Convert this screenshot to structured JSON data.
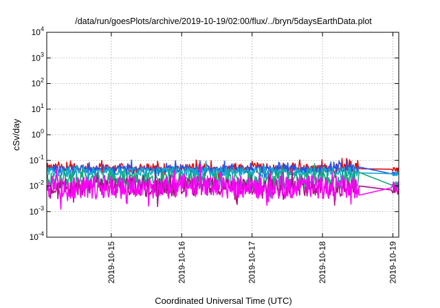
{
  "chart_data": {
    "type": "line",
    "title": "/data/run/goesPlots/archive/2019-10-19/02:00/flux/../bryn/5daysEarthData.plot",
    "xlabel": "Coordinated Universal Time (UTC)",
    "ylabel": "cSv/day",
    "yscale": "log",
    "ylim": [
      0.0001,
      10000
    ],
    "xlim": [
      "2019-10-14 02:00",
      "2019-10-19 02:00"
    ],
    "grid": true,
    "legend": "none",
    "y_ticks": [
      {
        "base": "10",
        "exp": "-4",
        "value": 0.0001
      },
      {
        "base": "10",
        "exp": "-3",
        "value": 0.001
      },
      {
        "base": "10",
        "exp": "-2",
        "value": 0.01
      },
      {
        "base": "10",
        "exp": "-1",
        "value": 0.1
      },
      {
        "base": "10",
        "exp": "0",
        "value": 1
      },
      {
        "base": "10",
        "exp": "1",
        "value": 10
      },
      {
        "base": "10",
        "exp": "2",
        "value": 100
      },
      {
        "base": "10",
        "exp": "3",
        "value": 1000
      },
      {
        "base": "10",
        "exp": "4",
        "value": 10000
      }
    ],
    "x_ticks": [
      "2019-10-15",
      "2019-10-16",
      "2019-10-17",
      "2019-10-18",
      "2019-10-19"
    ],
    "gap": [
      "2019-10-18 12:30",
      "2019-10-19 00:00"
    ],
    "series": [
      {
        "color": "#dd1111",
        "base": 0.05,
        "spread": 0.18,
        "spikes": 0.3,
        "after_gap": 0.045
      },
      {
        "color": "#2255ee",
        "base": 0.045,
        "spread": 0.15,
        "spikes": 0.25,
        "after_gap": 0.03
      },
      {
        "color": "#11aacc",
        "base": 0.035,
        "spread": 0.18,
        "spikes": 0.25,
        "after_gap": 0.03
      },
      {
        "color": "#11aa77",
        "base": 0.016,
        "spread": 0.35,
        "spikes": 0.35,
        "after_gap": 0.011
      },
      {
        "color": "#aa1188",
        "base": 0.009,
        "spread": 0.35,
        "spikes": 0.45,
        "after_gap": 0.007
      },
      {
        "color": "#ff00ff",
        "base": 0.009,
        "spread": 0.45,
        "spikes": 0.55,
        "after_gap": 0.0085
      }
    ]
  }
}
